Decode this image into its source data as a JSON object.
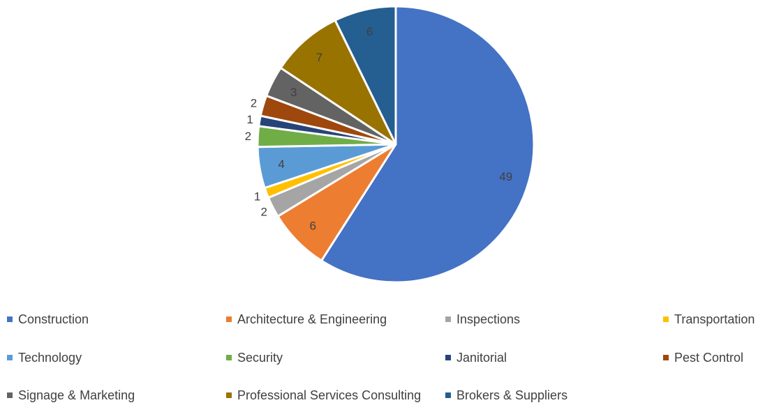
{
  "chart_data": {
    "type": "pie",
    "categories": [
      "Construction",
      "Architecture & Engineering",
      "Inspections",
      "Transportation",
      "Technology",
      "Security",
      "Janitorial",
      "Pest Control",
      "Signage & Marketing",
      "Professional Services Consulting",
      "Brokers & Suppliers"
    ],
    "values": [
      49,
      6,
      2,
      1,
      4,
      2,
      1,
      2,
      3,
      7,
      6
    ],
    "colors": [
      "#4472C4",
      "#ED7D31",
      "#A5A5A5",
      "#FFC000",
      "#5B9BD5",
      "#70AD47",
      "#264478",
      "#9E480E",
      "#636363",
      "#997300",
      "#255E91"
    ],
    "data_labels": [
      "49",
      "6",
      "2",
      "1",
      "4",
      "2",
      "1",
      "2",
      "3",
      "7",
      "6"
    ],
    "start_angle_deg": 0,
    "direction": "clockwise",
    "legend_position": "bottom",
    "title": ""
  }
}
